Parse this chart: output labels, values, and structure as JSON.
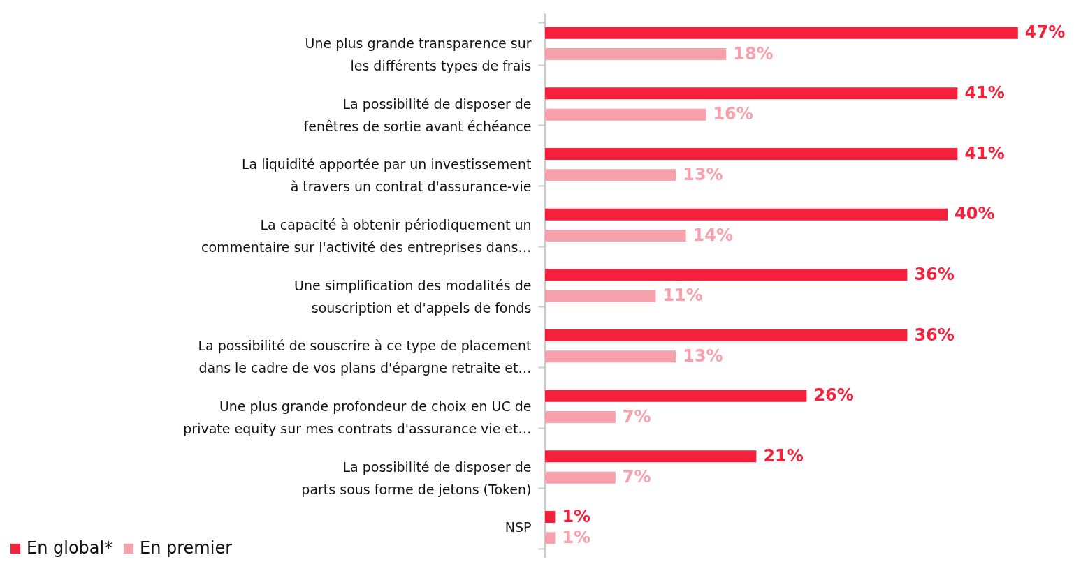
{
  "chart_data": {
    "type": "bar",
    "orientation": "horizontal",
    "legend": "bottom left",
    "grid": false,
    "categories": [
      "Une plus grande transparence sur les différents types de frais",
      "La possibilité de disposer de fenêtres de sortie avant échéance",
      "La liquidité apportée par un investissement à travers un contrat d'assurance-vie",
      "La capacité à obtenir périodiquement un commentaire sur l'activité des entreprises dans…",
      "Une simplification des modalités de souscription et d'appels de fonds",
      "La possibilité de souscrire à ce type de placement dans le cadre de vos plans d'épargne retraite et…",
      "Une plus grande profondeur de choix en UC de private equity sur mes contrats d'assurance vie et…",
      "La possibilité de disposer de parts sous forme de jetons (Token)",
      "NSP"
    ],
    "series": [
      {
        "name": "En global*",
        "color": "#f5203c",
        "values": [
          47,
          41,
          41,
          40,
          36,
          36,
          26,
          21,
          1
        ],
        "value_labels": [
          "47%",
          "41%",
          "41%",
          "40%",
          "36%",
          "36%",
          "26%",
          "21%",
          "1%"
        ]
      },
      {
        "name": "En premier",
        "color": "#f7a1ad",
        "values": [
          18,
          16,
          13,
          14,
          11,
          13,
          7,
          7,
          1
        ],
        "value_labels": [
          "18%",
          "16%",
          "13%",
          "14%",
          "11%",
          "13%",
          "7%",
          "7%",
          "1%"
        ]
      }
    ]
  }
}
